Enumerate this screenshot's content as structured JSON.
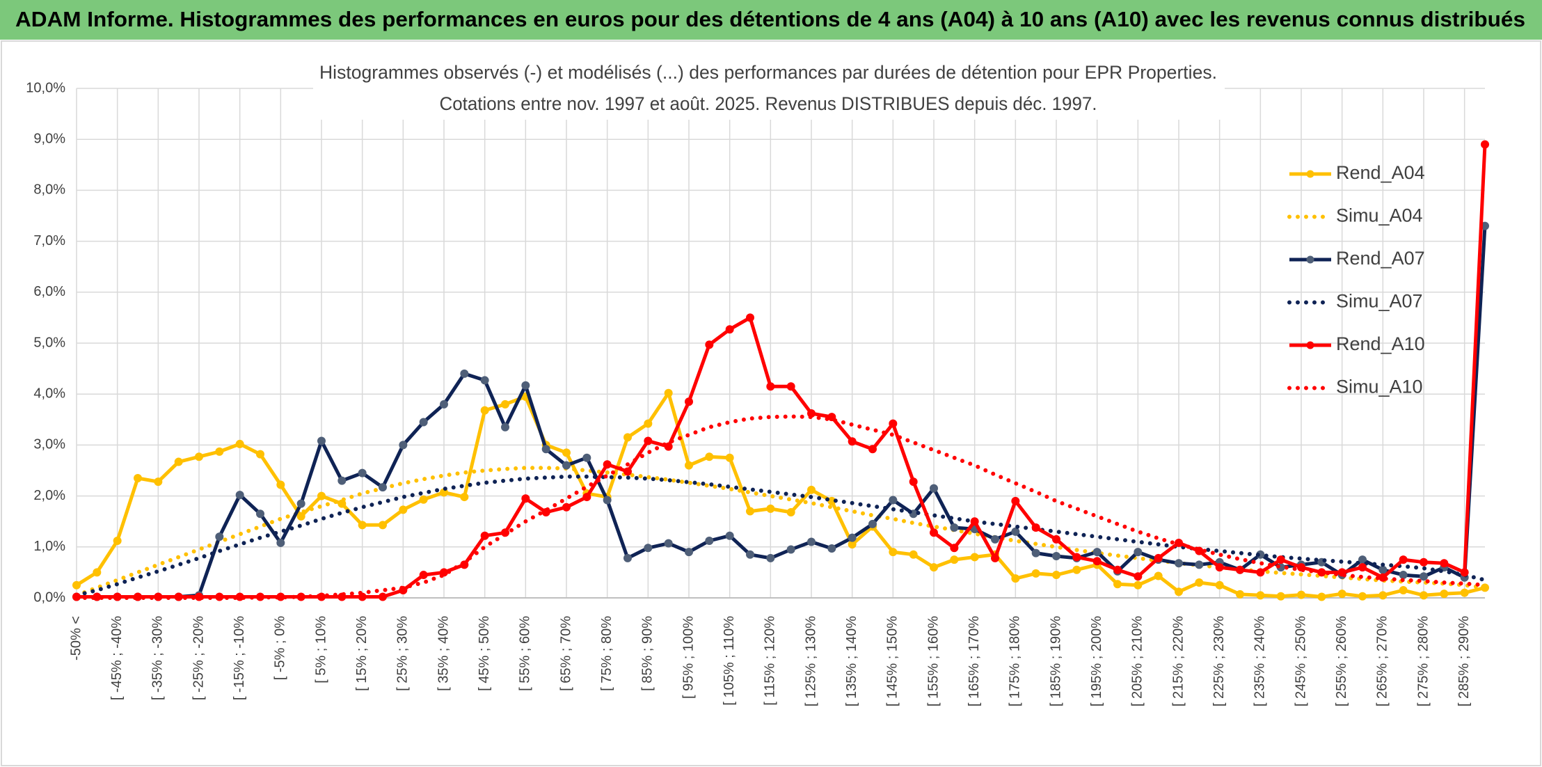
{
  "banner_title": "ADAM Informe. Histogrammes des performances en euros pour des détentions de 4 ans (A04) à 10 ans (A10) avec les revenus connus distribués",
  "chart_data": {
    "type": "line",
    "title": "Histogrammes observés (-) et modélisés (...) des performances par durées de détention pour EPR Properties.",
    "subtitle": "Cotations entre nov. 1997 et août. 2025. Revenus DISTRIBUES depuis déc. 1997.",
    "categories": [
      "-50% <",
      null,
      "[ -45% ; -40%",
      null,
      "[ -35% ; -30%",
      null,
      "[ -25% ; -20%",
      null,
      "[ -15% ; -10%",
      null,
      "[ -5% ; 0%",
      null,
      "[ 5% ; 10%",
      null,
      "[ 15% ; 20%",
      null,
      "[ 25% ; 30%",
      null,
      "[ 35% ; 40%",
      null,
      "[ 45% ; 50%",
      null,
      "[ 55% ; 60%",
      null,
      "[ 65% ; 70%",
      null,
      "[ 75% ; 80%",
      null,
      "[ 85% ; 90%",
      null,
      "[ 95% ; 100%",
      null,
      "[ 105% ; 110%",
      null,
      "[ 115% ; 120%",
      null,
      "[ 125% ; 130%",
      null,
      "[ 135% ; 140%",
      null,
      "[ 145% ; 150%",
      null,
      "[ 155% ; 160%",
      null,
      "[ 165% ; 170%",
      null,
      "[ 175% ; 180%",
      null,
      "[ 185% ; 190%",
      null,
      "[ 195% ; 200%",
      null,
      "[ 205% ; 210%",
      null,
      "[ 215% ; 220%",
      null,
      "[ 225% ; 230%",
      null,
      "[ 235% ; 240%",
      null,
      "[ 245% ; 250%",
      null,
      "[ 255% ; 260%",
      null,
      "[ 265% ; 270%",
      null,
      "[ 275% ; 280%",
      null,
      "[ 285% ; 290%",
      null
    ],
    "series": [
      {
        "name": "Rend_A04",
        "color": "#FFC000",
        "style": "solid",
        "markers": true,
        "marker_color": "#FFC000",
        "values": [
          0.25,
          0.5,
          1.12,
          2.35,
          2.28,
          2.67,
          2.77,
          2.87,
          3.02,
          2.82,
          2.22,
          1.6,
          2.0,
          1.85,
          1.43,
          1.43,
          1.73,
          1.93,
          2.07,
          1.98,
          3.68,
          3.8,
          3.95,
          3.0,
          2.85,
          2.05,
          1.98,
          3.15,
          3.42,
          4.02,
          2.6,
          2.77,
          2.75,
          1.7,
          1.75,
          1.68,
          2.12,
          1.9,
          1.05,
          1.4,
          0.9,
          0.85,
          0.6,
          0.75,
          0.8,
          0.85,
          0.38,
          0.48,
          0.45,
          0.55,
          0.65,
          0.27,
          0.25,
          0.43,
          0.12,
          0.3,
          0.25,
          0.07,
          0.05,
          0.03,
          0.06,
          0.02,
          0.08,
          0.03,
          0.05,
          0.15,
          0.05,
          0.08,
          0.1,
          0.2
        ]
      },
      {
        "name": "Simu_A04",
        "color": "#FFC000",
        "style": "dotted",
        "markers": false,
        "values": [
          0.05,
          0.2,
          0.35,
          0.5,
          0.65,
          0.8,
          0.95,
          1.1,
          1.25,
          1.4,
          1.55,
          1.68,
          1.8,
          1.92,
          2.05,
          2.15,
          2.25,
          2.33,
          2.4,
          2.46,
          2.5,
          2.53,
          2.55,
          2.55,
          2.54,
          2.5,
          2.46,
          2.42,
          2.37,
          2.32,
          2.26,
          2.2,
          2.14,
          2.07,
          2.0,
          1.93,
          1.86,
          1.78,
          1.7,
          1.62,
          1.55,
          1.47,
          1.4,
          1.33,
          1.26,
          1.19,
          1.12,
          1.06,
          1.0,
          0.94,
          0.88,
          0.83,
          0.78,
          0.73,
          0.68,
          0.64,
          0.6,
          0.56,
          0.52,
          0.49,
          0.46,
          0.43,
          0.4,
          0.37,
          0.34,
          0.32,
          0.3,
          0.28,
          0.25,
          0.2
        ]
      },
      {
        "name": "Rend_A07",
        "color": "#0F2355",
        "style": "solid",
        "markers": true,
        "marker_color": "#4F5F78",
        "values": [
          0.02,
          0.02,
          0.02,
          0.02,
          0.02,
          0.02,
          0.05,
          1.2,
          2.02,
          1.65,
          1.08,
          1.85,
          3.08,
          2.3,
          2.45,
          2.17,
          3.0,
          3.45,
          3.8,
          4.4,
          4.27,
          3.35,
          4.17,
          2.92,
          2.6,
          2.75,
          1.92,
          0.78,
          0.98,
          1.07,
          0.9,
          1.12,
          1.22,
          0.85,
          0.78,
          0.95,
          1.1,
          0.97,
          1.18,
          1.45,
          1.92,
          1.65,
          2.15,
          1.38,
          1.35,
          1.15,
          1.3,
          0.88,
          0.82,
          0.78,
          0.9,
          0.52,
          0.9,
          0.75,
          0.68,
          0.65,
          0.7,
          0.55,
          0.85,
          0.6,
          0.65,
          0.7,
          0.45,
          0.75,
          0.55,
          0.45,
          0.42,
          0.6,
          0.4,
          7.3
        ]
      },
      {
        "name": "Simu_A07",
        "color": "#0F2355",
        "style": "dotted",
        "markers": false,
        "values": [
          0.05,
          0.15,
          0.27,
          0.4,
          0.52,
          0.65,
          0.78,
          0.92,
          1.05,
          1.18,
          1.3,
          1.42,
          1.55,
          1.67,
          1.78,
          1.88,
          1.98,
          2.06,
          2.14,
          2.2,
          2.26,
          2.3,
          2.34,
          2.36,
          2.38,
          2.38,
          2.37,
          2.36,
          2.34,
          2.31,
          2.27,
          2.23,
          2.18,
          2.13,
          2.08,
          2.03,
          1.98,
          1.92,
          1.86,
          1.8,
          1.74,
          1.68,
          1.62,
          1.56,
          1.5,
          1.45,
          1.4,
          1.35,
          1.3,
          1.25,
          1.2,
          1.15,
          1.1,
          1.05,
          1.0,
          0.96,
          0.92,
          0.88,
          0.84,
          0.8,
          0.77,
          0.74,
          0.71,
          0.68,
          0.65,
          0.62,
          0.58,
          0.52,
          0.45,
          0.35
        ]
      },
      {
        "name": "Rend_A10",
        "color": "#FF0000",
        "style": "solid",
        "markers": true,
        "marker_color": "#FF0000",
        "values": [
          0.02,
          0.02,
          0.02,
          0.02,
          0.02,
          0.02,
          0.02,
          0.02,
          0.02,
          0.02,
          0.02,
          0.02,
          0.02,
          0.02,
          0.02,
          0.02,
          0.15,
          0.45,
          0.5,
          0.65,
          1.22,
          1.28,
          1.95,
          1.68,
          1.78,
          1.98,
          2.62,
          2.48,
          3.08,
          2.97,
          3.85,
          4.97,
          5.27,
          5.5,
          4.15,
          4.15,
          3.62,
          3.55,
          3.07,
          2.92,
          3.42,
          2.28,
          1.28,
          0.98,
          1.5,
          0.78,
          1.9,
          1.38,
          1.15,
          0.8,
          0.72,
          0.55,
          0.42,
          0.78,
          1.08,
          0.92,
          0.6,
          0.55,
          0.5,
          0.75,
          0.6,
          0.5,
          0.5,
          0.6,
          0.4,
          0.75,
          0.7,
          0.68,
          0.5,
          8.9
        ]
      },
      {
        "name": "Simu_A10",
        "color": "#FF0000",
        "style": "dotted",
        "markers": false,
        "values": [
          0,
          0,
          0,
          0,
          0,
          0,
          0,
          0,
          0,
          0.01,
          0.01,
          0.02,
          0.04,
          0.07,
          0.1,
          0.15,
          0.2,
          0.3,
          0.45,
          0.7,
          1.0,
          1.25,
          1.5,
          1.72,
          1.95,
          2.18,
          2.4,
          2.62,
          2.85,
          3.05,
          3.2,
          3.35,
          3.45,
          3.52,
          3.55,
          3.56,
          3.55,
          3.5,
          3.4,
          3.3,
          3.2,
          3.05,
          2.9,
          2.75,
          2.6,
          2.42,
          2.25,
          2.08,
          1.9,
          1.75,
          1.6,
          1.45,
          1.3,
          1.17,
          1.05,
          0.95,
          0.85,
          0.76,
          0.68,
          0.61,
          0.55,
          0.5,
          0.45,
          0.41,
          0.38,
          0.35,
          0.33,
          0.3,
          0.28,
          0.25
        ]
      }
    ],
    "ylim": [
      0,
      10
    ],
    "yticks": [
      {
        "value": 0,
        "label": "0,0%"
      },
      {
        "value": 1,
        "label": "1,0%"
      },
      {
        "value": 2,
        "label": "2,0%"
      },
      {
        "value": 3,
        "label": "3,0%"
      },
      {
        "value": 4,
        "label": "4,0%"
      },
      {
        "value": 5,
        "label": "5,0%"
      },
      {
        "value": 6,
        "label": "6,0%"
      },
      {
        "value": 7,
        "label": "7,0%"
      },
      {
        "value": 8,
        "label": "8,0%"
      },
      {
        "value": 9,
        "label": "9,0%"
      },
      {
        "value": 10,
        "label": "10,0%"
      }
    ],
    "grid": true,
    "legend": "right"
  }
}
